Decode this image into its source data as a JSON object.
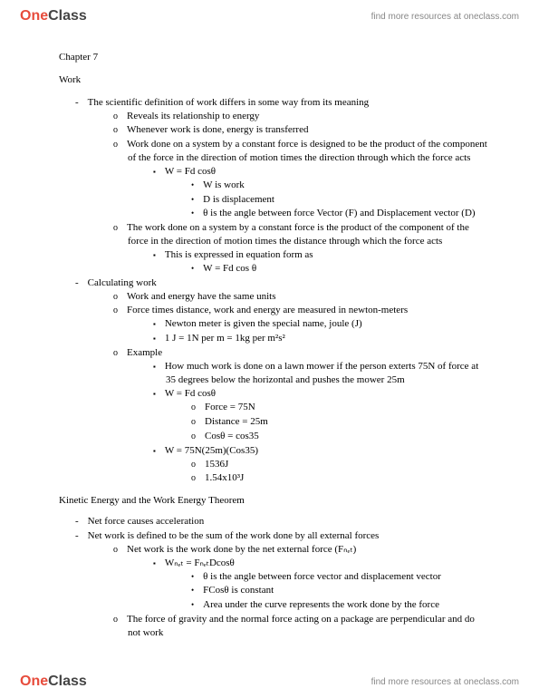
{
  "brand": {
    "part1": "One",
    "part2": "Class"
  },
  "tagline": "find more resources at oneclass.com",
  "chapter": "Chapter 7",
  "title1": "Work",
  "s1": {
    "i1": "The scientific definition of work differs in some way from its meaning",
    "sub": {
      "a": "Reveals its relationship to energy",
      "b": "Whenever work is done, energy is transferred",
      "c": "Work done on a system by a constant force is designed to be the product of the component of the force in the direction of motion times the direction through which the force acts",
      "c_sub": {
        "eq": "W = Fd cosθ",
        "w": "W is work",
        "d": "D is displacement",
        "theta": "θ is the angle between force Vector (F) and Displacement vector (D)"
      },
      "d": "The work done on a system by a constant force is the product of the component of the force in the direction of motion times the distance through which the force acts",
      "d_sub": {
        "expr": "This is expressed in equation form as",
        "eq": "W = Fd cos θ"
      }
    },
    "i2": "Calculating work",
    "calc": {
      "a": "Work and energy have the same units",
      "b": "Force times distance, work and energy are measured in newton-meters",
      "b_sub": {
        "joule": "Newton meter is given the special name, joule (J)",
        "unit": "1 J = 1N per m = 1kg per m²s²"
      },
      "c": "Example",
      "c_sub": {
        "q": "How much work is done on a lawn mower if the person exterts 75N of force at 35 degrees below the horizontal and pushes the mower 25m",
        "eq1": "W = Fd cosθ",
        "force": "Force = 75N",
        "dist": "Distance = 25m",
        "cos": "Cosθ = cos35",
        "eq2": "W = 75N(25m)(Cos35)",
        "r1": "1536J",
        "r2": "1.54x10³J"
      }
    }
  },
  "title2": "Kinetic Energy and the Work Energy Theorem",
  "s2": {
    "i1": "Net force causes acceleration",
    "i2": "Net work is defined to be the sum of the work done by all external forces",
    "sub": {
      "a": "Net work is the work done by the net external force (Fₙₑₜ)",
      "a_sub": {
        "eq": "Wₙₑₜ = FₙₑₜDcosθ",
        "theta": "θ is the angle between force vector and displacement vector",
        "fcos": "FCosθ is constant",
        "area": "Area under the curve represents the work done by the force"
      },
      "b": "The force of gravity and the normal force acting on a package are perpendicular and do not work"
    }
  }
}
